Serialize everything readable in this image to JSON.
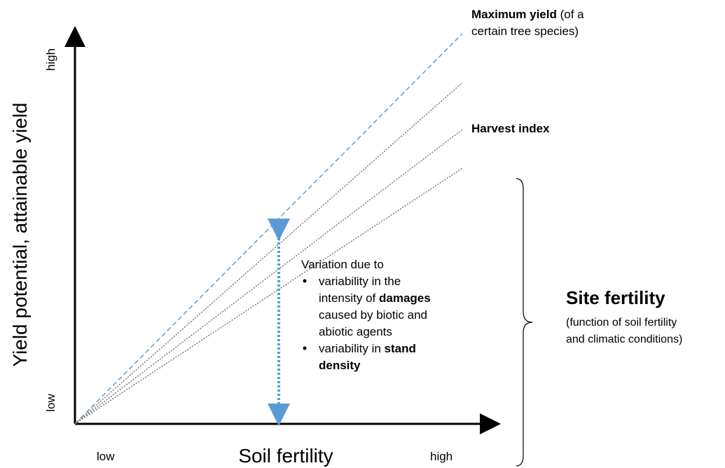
{
  "title_lines": {
    "max_yield_bold": "Maximum yield",
    "max_yield_rest": "(of a",
    "max_yield_line2": "certain tree species)",
    "harvest_index": "Harvest index"
  },
  "y_axis": {
    "label": "Yield potential, attainable yield",
    "high": "high",
    "low": "low"
  },
  "x_axis": {
    "label": "Soil fertility",
    "low": "low",
    "high": "high"
  },
  "annotation": {
    "heading": "Variation due to",
    "bullet_1": {
      "line_1": "variability in the",
      "line_2_start": "intensity of",
      "line_2_bold": "damages",
      "line_3": "caused by biotic and",
      "line_4": "abiotic agents"
    },
    "bullet_2": {
      "line_1_start": "variability in",
      "line_1_bold": "stand",
      "line_2_bold": "density"
    }
  },
  "site": {
    "title": "Site fertility",
    "line_1": "(function of soil fertility",
    "line_2": "and climatic conditions)"
  }
}
